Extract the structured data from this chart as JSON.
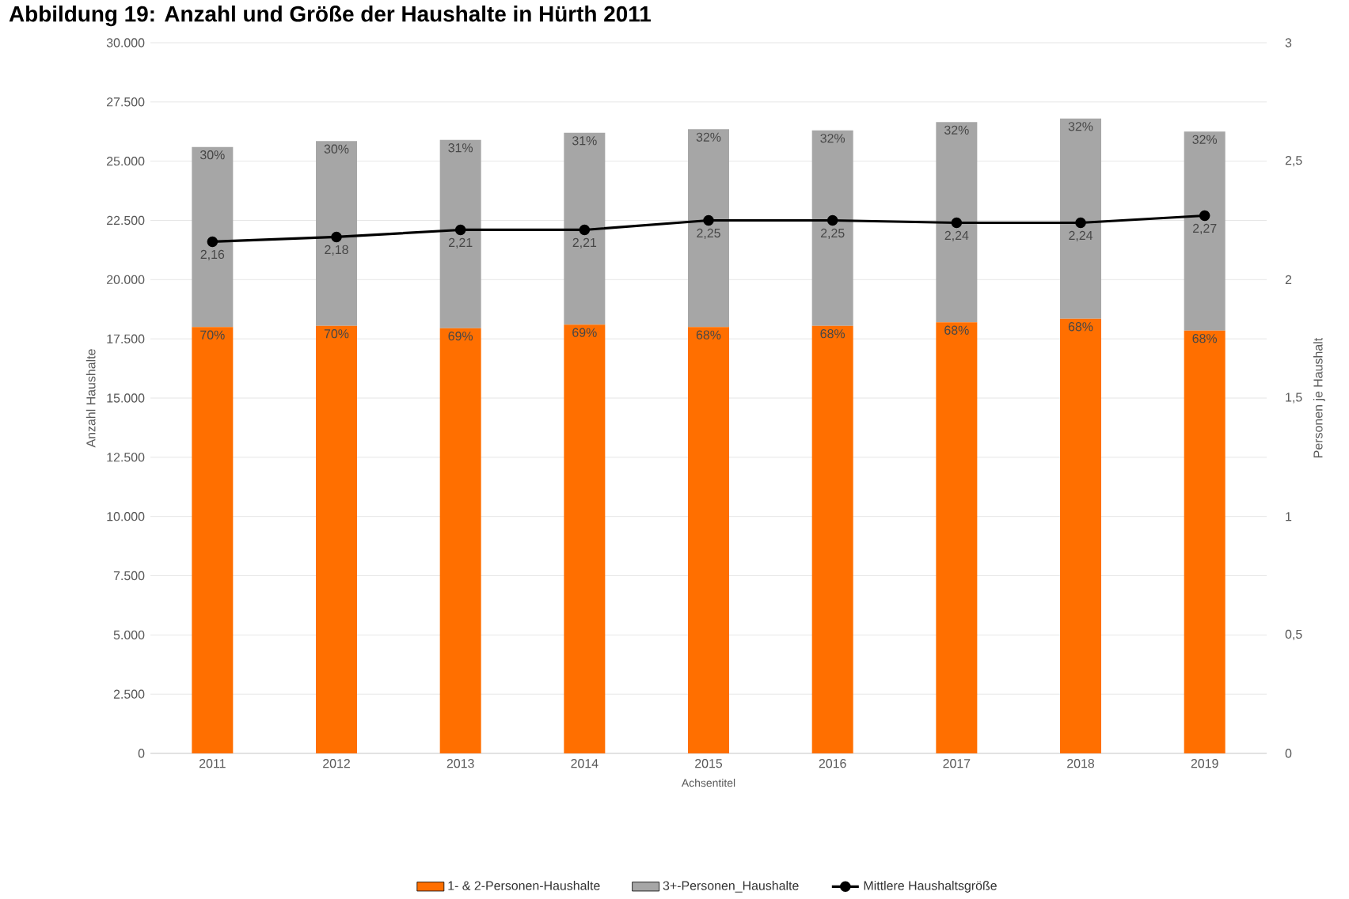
{
  "chart_data": {
    "type": "bar",
    "title": "Abbildung 19: Anzahl und Größe der Haushalte in Hürth 2011",
    "categories": [
      "2011",
      "2012",
      "2013",
      "2014",
      "2015",
      "2016",
      "2017",
      "2018",
      "2019"
    ],
    "series": [
      {
        "name": "1- & 2-Personen-Haushalte",
        "color": "#ff6f00",
        "values": [
          18000,
          18050,
          17950,
          18100,
          18000,
          18050,
          18200,
          18350,
          17850
        ]
      },
      {
        "name": "3+-Personen_Haushalte",
        "color": "#a6a6a6",
        "values": [
          7600,
          7800,
          7950,
          8100,
          8350,
          8250,
          8450,
          8450,
          8400
        ]
      },
      {
        "name": "Mittlere Haushaltsgröße",
        "type": "line",
        "axis": "y2",
        "color": "#000000",
        "marker": "circle",
        "values": [
          2.16,
          2.18,
          2.21,
          2.21,
          2.25,
          2.25,
          2.24,
          2.24,
          2.27
        ],
        "value_labels": [
          "2,16",
          "2,18",
          "2,21",
          "2,21",
          "2,25",
          "2,25",
          "2,24",
          "2,24",
          "2,27"
        ]
      }
    ],
    "annotations": [
      {
        "text": "70%",
        "x": "2011",
        "y": 18000
      },
      {
        "text": "70%",
        "x": "2012",
        "y": 18050
      },
      {
        "text": "69%",
        "x": "2013",
        "y": 17950
      },
      {
        "text": "69%",
        "x": "2014",
        "y": 18100
      },
      {
        "text": "68%",
        "x": "2015",
        "y": 18000
      },
      {
        "text": "68%",
        "x": "2016",
        "y": 18050
      },
      {
        "text": "68%",
        "x": "2017",
        "y": 18200
      },
      {
        "text": "68%",
        "x": "2018",
        "y": 18350
      },
      {
        "text": "68%",
        "x": "2019",
        "y": 17850
      },
      {
        "text": "30%",
        "x": "2011",
        "y": 25600
      },
      {
        "text": "30%",
        "x": "2012",
        "y": 25850
      },
      {
        "text": "31%",
        "x": "2013",
        "y": 25900
      },
      {
        "text": "31%",
        "x": "2014",
        "y": 26200
      },
      {
        "text": "32%",
        "x": "2015",
        "y": 26350
      },
      {
        "text": "32%",
        "x": "2016",
        "y": 26300
      },
      {
        "text": "32%",
        "x": "2017",
        "y": 26650
      },
      {
        "text": "32%",
        "x": "2018",
        "y": 26800
      },
      {
        "text": "32%",
        "x": "2019",
        "y": 26250
      }
    ],
    "stacked": true,
    "xlabel": "Achsentitel",
    "ylabel": "Anzahl Haushalte",
    "y2label": "Personen je Haushalt",
    "ylim": [
      0,
      30000
    ],
    "yticks": [
      0,
      {
        "value": 2500,
        "label": "2.500"
      },
      {
        "value": 5000,
        "label": "5.000"
      },
      {
        "value": 7500,
        "label": "7.500"
      },
      {
        "value": 10000,
        "label": "10.000"
      },
      {
        "value": 12500,
        "label": "12.500"
      },
      {
        "value": 15000,
        "label": "15.000"
      },
      {
        "value": 17500,
        "label": "17.500"
      },
      {
        "value": 20000,
        "label": "20.000"
      },
      {
        "value": 22500,
        "label": "22.500"
      },
      {
        "value": 25000,
        "label": "25.000"
      },
      {
        "value": 27500,
        "label": "27.500"
      },
      {
        "value": 30000,
        "label": "30.000"
      }
    ],
    "y2lim": [
      0,
      3
    ],
    "y2ticks": [
      0,
      {
        "value": 0.5,
        "label": "0,5"
      },
      1,
      {
        "value": 1.5,
        "label": "1,5"
      },
      2,
      {
        "value": 2.5,
        "label": "2,5"
      },
      3
    ],
    "grid": "y",
    "legend": "bottom"
  }
}
